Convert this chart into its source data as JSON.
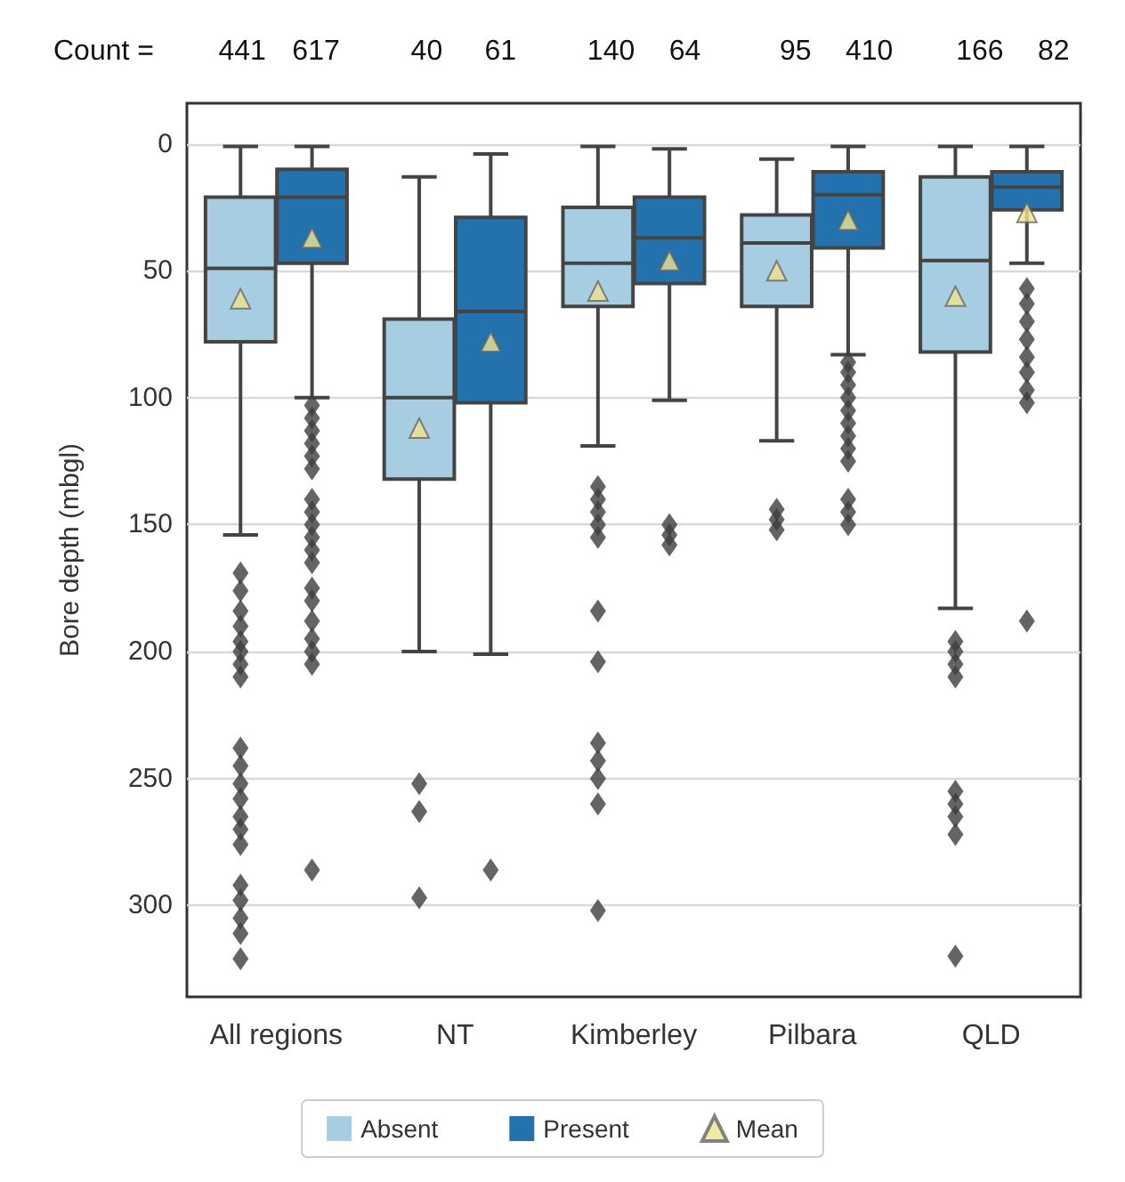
{
  "chart_data": {
    "type": "box",
    "ylabel": "Bore depth (mbgl)",
    "categories": [
      "All regions",
      "NT",
      "Kimberley",
      "Pilbara",
      "QLD"
    ],
    "ylim": [
      336,
      -16
    ],
    "yticks": [
      0,
      50,
      100,
      150,
      200,
      250,
      300
    ],
    "grid": "y",
    "legend": "bottom",
    "annotations": [
      "Count =",
      "441",
      "617",
      "40",
      "61",
      "140",
      "64",
      "95",
      "410",
      "166",
      "82"
    ],
    "series": [
      {
        "name": "Absent",
        "color": "#a6cde2",
        "boxes": [
          {
            "low": 1,
            "q1": 21,
            "median": 49,
            "q3": 78,
            "high": 154,
            "outliers": [
              169,
              176,
              184,
              190,
              196,
              200,
              205,
              210,
              238,
              245,
              252,
              258,
              265,
              270,
              276,
              292,
              298,
              305,
              311,
              321
            ]
          },
          {
            "low": 13,
            "q1": 69,
            "median": 100,
            "q3": 132,
            "high": 200,
            "outliers": [
              252,
              263,
              297
            ]
          },
          {
            "low": 1,
            "q1": 25,
            "median": 47,
            "q3": 64,
            "high": 119,
            "outliers": [
              135,
              140,
              145,
              150,
              155,
              184,
              204,
              236,
              243,
              250,
              260,
              302
            ]
          },
          {
            "low": 6,
            "q1": 28,
            "median": 39,
            "q3": 64,
            "high": 117,
            "outliers": [
              144,
              148,
              152
            ]
          },
          {
            "low": 1,
            "q1": 13,
            "median": 46,
            "q3": 82,
            "high": 183,
            "outliers": [
              196,
              200,
              205,
              210,
              255,
              260,
              265,
              272,
              320
            ]
          }
        ]
      },
      {
        "name": "Present",
        "color": "#2472ad",
        "boxes": [
          {
            "low": 1,
            "q1": 10,
            "median": 21,
            "q3": 47,
            "high": 100,
            "outliers": [
              103,
              108,
              113,
              118,
              123,
              128,
              140,
              145,
              150,
              155,
              160,
              165,
              175,
              180,
              188,
              195,
              200,
              205,
              286
            ]
          },
          {
            "low": 4,
            "q1": 29,
            "median": 66,
            "q3": 102,
            "high": 201,
            "outliers": [
              286
            ]
          },
          {
            "low": 2,
            "q1": 21,
            "median": 37,
            "q3": 55,
            "high": 101,
            "outliers": [
              150,
              154,
              158
            ]
          },
          {
            "low": 1,
            "q1": 11,
            "median": 20,
            "q3": 41,
            "high": 83,
            "outliers": [
              86,
              90,
              95,
              100,
              105,
              110,
              115,
              120,
              125,
              140,
              145,
              150
            ]
          },
          {
            "low": 1,
            "q1": 11,
            "median": 17,
            "q3": 26,
            "high": 47,
            "outliers": [
              57,
              63,
              70,
              77,
              84,
              90,
              97,
              102,
              188
            ]
          }
        ]
      },
      {
        "name": "Mean",
        "type": "scatter",
        "color": "#efe38f",
        "marker": "triangle",
        "values": [
          61,
          112,
          58,
          50,
          60
        ]
      },
      {
        "type": "scatter",
        "color": "#efe38f",
        "marker": "triangle",
        "values": [
          37,
          78,
          46,
          30,
          27
        ]
      }
    ]
  }
}
